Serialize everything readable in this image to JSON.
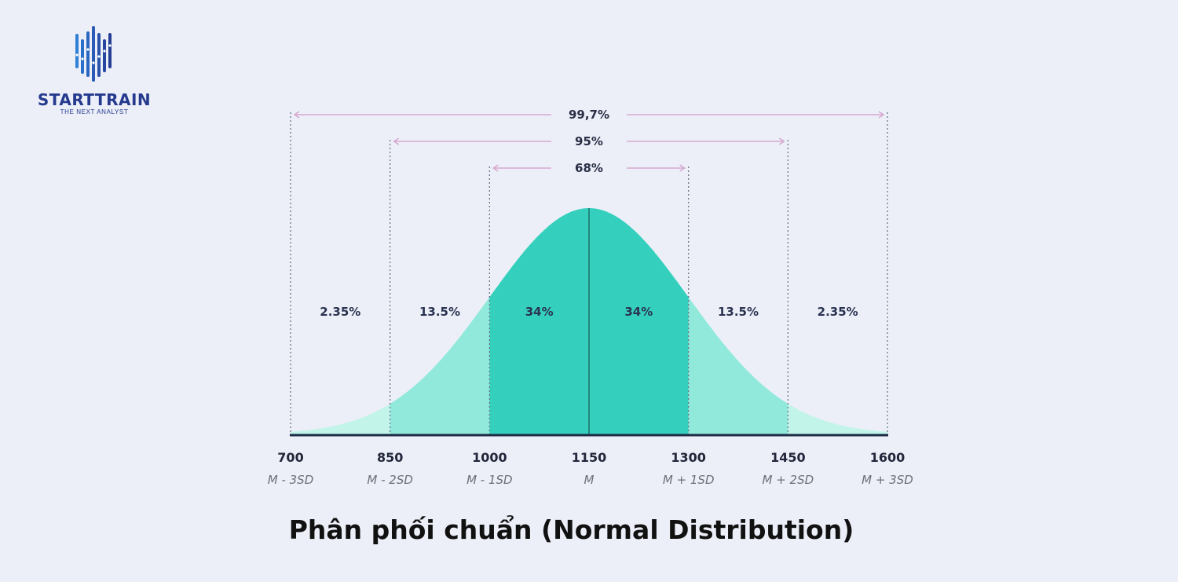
{
  "logo": {
    "name": "STARTTRAIN",
    "tagline": "THE NEXT ANALYST",
    "color": "#253a8e"
  },
  "chart_data": {
    "type": "area",
    "title": "Phân phối chuẩn (Normal Distribution)",
    "mean": 1150,
    "sd": 150,
    "x_ticks": [
      700,
      850,
      1000,
      1150,
      1300,
      1450,
      1600
    ],
    "x_tick_labels": [
      "700",
      "850",
      "1000",
      "1150",
      "1300",
      "1450",
      "1600"
    ],
    "x_sublabels": [
      "M - 3SD",
      "M - 2SD",
      "M - 1SD",
      "M",
      "M + 1SD",
      "M + 2SD",
      "M + 3SD"
    ],
    "segments": [
      {
        "from": 700,
        "to": 850,
        "percent": "2.35%",
        "color": "#c3f4ea"
      },
      {
        "from": 850,
        "to": 1000,
        "percent": "13.5%",
        "color": "#91e9dc"
      },
      {
        "from": 1000,
        "to": 1150,
        "percent": "34%",
        "color": "#35d0bd"
      },
      {
        "from": 1150,
        "to": 1300,
        "percent": "34%",
        "color": "#35d0bd"
      },
      {
        "from": 1300,
        "to": 1450,
        "percent": "13.5%",
        "color": "#91e9dc"
      },
      {
        "from": 1450,
        "to": 1600,
        "percent": "2.35%",
        "color": "#c3f4ea"
      }
    ],
    "ranges": [
      {
        "label": "99,7%",
        "from": 700,
        "to": 1600
      },
      {
        "label": "95%",
        "from": 850,
        "to": 1450
      },
      {
        "label": "68%",
        "from": 1000,
        "to": 1300
      }
    ],
    "xlabel": "",
    "ylabel": ""
  }
}
